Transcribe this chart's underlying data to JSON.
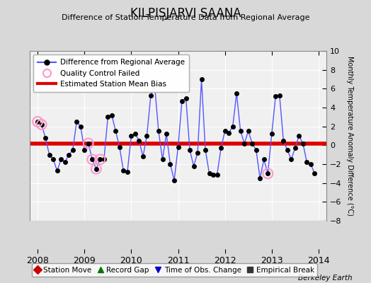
{
  "title": "KILPISJARVI SAANA",
  "subtitle": "Difference of Station Temperature Data from Regional Average",
  "ylabel": "Monthly Temperature Anomaly Difference (°C)",
  "xlim": [
    2007.83,
    2014.17
  ],
  "ylim": [
    -8,
    10
  ],
  "yticks": [
    -8,
    -6,
    -4,
    -2,
    0,
    2,
    4,
    6,
    8,
    10
  ],
  "xticks": [
    2008,
    2009,
    2010,
    2011,
    2012,
    2013,
    2014
  ],
  "bias_value": 0.2,
  "bg_color": "#d8d8d8",
  "plot_bg_color": "#f0f0f0",
  "line_color": "#5555ff",
  "marker_color": "#000000",
  "bias_color": "#dd0000",
  "qc_fail_color": "#ff99cc",
  "footer_text": "Berkeley Earth",
  "data_x": [
    2008.0,
    2008.083,
    2008.167,
    2008.25,
    2008.333,
    2008.417,
    2008.5,
    2008.583,
    2008.667,
    2008.75,
    2008.833,
    2008.917,
    2009.0,
    2009.083,
    2009.167,
    2009.25,
    2009.333,
    2009.417,
    2009.5,
    2009.583,
    2009.667,
    2009.75,
    2009.833,
    2009.917,
    2010.0,
    2010.083,
    2010.167,
    2010.25,
    2010.333,
    2010.417,
    2010.5,
    2010.583,
    2010.667,
    2010.75,
    2010.833,
    2010.917,
    2011.0,
    2011.083,
    2011.167,
    2011.25,
    2011.333,
    2011.417,
    2011.5,
    2011.583,
    2011.667,
    2011.75,
    2011.833,
    2011.917,
    2012.0,
    2012.083,
    2012.167,
    2012.25,
    2012.333,
    2012.417,
    2012.5,
    2012.583,
    2012.667,
    2012.75,
    2012.833,
    2012.917,
    2013.0,
    2013.083,
    2013.167,
    2013.25,
    2013.333,
    2013.417,
    2013.5,
    2013.583,
    2013.667,
    2013.75,
    2013.833,
    2013.917
  ],
  "data_y": [
    2.5,
    2.2,
    0.8,
    -1.0,
    -1.5,
    -2.7,
    -1.5,
    -1.8,
    -1.0,
    -0.5,
    2.5,
    2.0,
    -0.5,
    0.2,
    -1.5,
    -2.5,
    -1.5,
    -1.5,
    3.0,
    3.2,
    1.5,
    -0.2,
    -2.7,
    -2.8,
    1.0,
    1.2,
    0.5,
    -1.2,
    1.0,
    5.3,
    6.3,
    1.5,
    -1.5,
    1.2,
    -2.0,
    -3.7,
    -0.2,
    4.7,
    5.0,
    -0.5,
    -2.2,
    -0.8,
    7.0,
    -0.5,
    -3.0,
    -3.1,
    -3.1,
    -0.3,
    1.5,
    1.3,
    2.0,
    5.5,
    1.5,
    0.2,
    1.5,
    0.2,
    -0.5,
    -3.5,
    -1.5,
    -3.0,
    1.2,
    5.2,
    5.3,
    0.5,
    -0.5,
    -1.5,
    -0.3,
    1.0,
    0.2,
    -1.8,
    -2.0,
    -3.0
  ],
  "qc_fail_indices": [
    0,
    1,
    13,
    14,
    15,
    16,
    59
  ],
  "bottom_legend": [
    {
      "label": "Station Move",
      "color": "#cc0000",
      "marker": "D"
    },
    {
      "label": "Record Gap",
      "color": "#007700",
      "marker": "^"
    },
    {
      "label": "Time of Obs. Change",
      "color": "#0000cc",
      "marker": "v"
    },
    {
      "label": "Empirical Break",
      "color": "#333333",
      "marker": "s"
    }
  ]
}
